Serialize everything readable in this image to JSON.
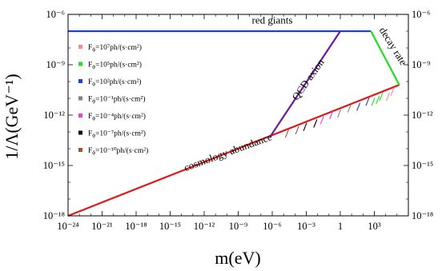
{
  "chart_data": {
    "type": "line",
    "xlabel": "m(eV)",
    "ylabel": "1/Λ(GeV⁻¹)",
    "xscale": "log",
    "yscale": "log",
    "xlim_log10": [
      -24,
      6
    ],
    "ylim_log10": [
      -18,
      -6
    ],
    "x_ticks": [
      {
        "pos": -24,
        "label": "10⁻²⁴"
      },
      {
        "pos": -21,
        "label": "10⁻²¹"
      },
      {
        "pos": -18,
        "label": "10⁻¹⁸"
      },
      {
        "pos": -15,
        "label": "10⁻¹⁵"
      },
      {
        "pos": -12,
        "label": "10⁻¹²"
      },
      {
        "pos": -9,
        "label": "10⁻⁹"
      },
      {
        "pos": -6,
        "label": "10⁻⁶"
      },
      {
        "pos": -3,
        "label": "10⁻³"
      },
      {
        "pos": 0,
        "label": "1"
      },
      {
        "pos": 3,
        "label": "10³"
      }
    ],
    "y_ticks": [
      {
        "pos": -6,
        "label": "10⁻⁶"
      },
      {
        "pos": -9,
        "label": "10⁻⁹"
      },
      {
        "pos": -12,
        "label": "10⁻¹²"
      },
      {
        "pos": -15,
        "label": "10⁻¹⁵"
      },
      {
        "pos": -18,
        "label": "10⁻¹⁸"
      }
    ],
    "lines": [
      {
        "name": "red giants",
        "color": "#1f3fd6",
        "points": [
          [
            -24,
            -7.0
          ],
          [
            2.7,
            -7.0
          ]
        ]
      },
      {
        "name": "cosmology abundance",
        "color": "#e01818",
        "points": [
          [
            -24,
            -18.0
          ],
          [
            5.2,
            -10.2
          ]
        ]
      },
      {
        "name": "QCD axion",
        "color": "#6a1b9a",
        "points": [
          [
            -6.2,
            -13.3
          ],
          [
            0.0,
            -7.0
          ]
        ]
      },
      {
        "name": "decay rate",
        "color": "#22dd22",
        "points": [
          [
            2.7,
            -7.0
          ],
          [
            5.2,
            -10.2
          ]
        ]
      }
    ],
    "annotations": [
      {
        "text": "red giants",
        "x": -6,
        "y": -6.55,
        "rotate": 0
      },
      {
        "text": "QCD axion",
        "x": -2.6,
        "y": -10.0,
        "rotate": -55
      },
      {
        "text": "decay rate",
        "x": 4.4,
        "y": -8.0,
        "rotate": 58
      },
      {
        "text": "cosmology abundance",
        "x": -9.8,
        "y": -14.4,
        "rotate": -20
      }
    ],
    "legend": {
      "placement": "left",
      "entries": [
        {
          "label": "F",
          "sub": "ϕ",
          "rest": "=10⁷ph/(s·cm²)",
          "color": "#f08c8c"
        },
        {
          "label": "F",
          "sub": "ϕ",
          "rest": "=10⁵ph/(s·cm²)",
          "color": "#22dd22"
        },
        {
          "label": "F",
          "sub": "ϕ",
          "rest": "=10²ph/(s·cm²)",
          "color": "#1f3fd6"
        },
        {
          "label": "F",
          "sub": "ϕ",
          "rest": "=10⁻¹ph/(s·cm²)",
          "color": "#808080"
        },
        {
          "label": "F",
          "sub": "ϕ",
          "rest": "=10⁻⁴ph/(s·cm²)",
          "color": "#e040e0"
        },
        {
          "label": "F",
          "sub": "ϕ",
          "rest": "=10⁻⁷ph/(s·cm²)",
          "color": "#000000"
        },
        {
          "label": "F",
          "sub": "ϕ",
          "rest": "=10⁻¹⁰ph/(s·cm²)",
          "color": "#a0522d"
        }
      ]
    },
    "flux_marks": [
      {
        "x": 4.2,
        "y": -10.9,
        "color": "#f08c8c"
      },
      {
        "x": 3.6,
        "y": -10.9,
        "color": "#22dd22"
      },
      {
        "x": 2.4,
        "y": -11.2,
        "color": "#1f3fd6"
      },
      {
        "x": 0.8,
        "y": -11.6,
        "color": "#808080"
      },
      {
        "x": -0.8,
        "y": -12.0,
        "color": "#e040e0"
      },
      {
        "x": -2.2,
        "y": -12.5,
        "color": "#000000"
      },
      {
        "x": -3.8,
        "y": -12.9,
        "color": "#a0522d"
      },
      {
        "x": 3.3,
        "y": -11.1,
        "color": "#22dd22"
      },
      {
        "x": 1.6,
        "y": -11.5,
        "color": "#1f3fd6"
      },
      {
        "x": -0.1,
        "y": -11.9,
        "color": "#808080"
      },
      {
        "x": -1.6,
        "y": -12.3,
        "color": "#e040e0"
      },
      {
        "x": -3.1,
        "y": -12.7,
        "color": "#000000"
      },
      {
        "x": -4.7,
        "y": -13.1,
        "color": "#a0522d"
      },
      {
        "x": 4.6,
        "y": -10.6,
        "color": "#f08c8c"
      },
      {
        "x": 2.9,
        "y": -11.2,
        "color": "#22dd22"
      }
    ]
  }
}
